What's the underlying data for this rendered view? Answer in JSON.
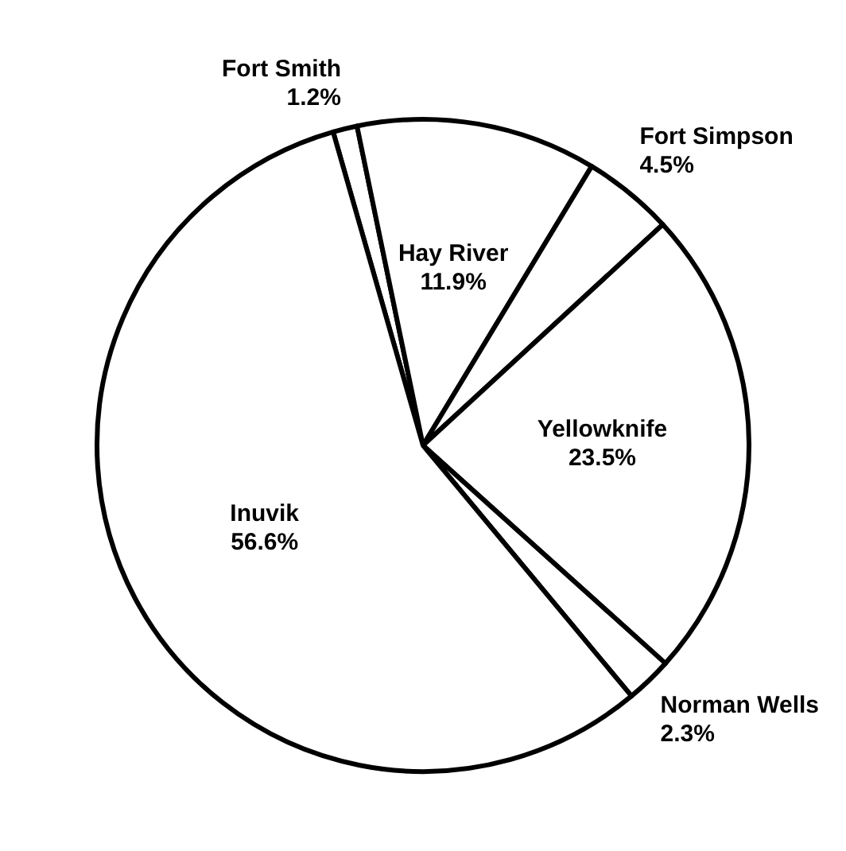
{
  "chart_data": {
    "type": "pie",
    "categories": [
      "Fort Smith",
      "Hay River",
      "Fort Simpson",
      "Yellowknife",
      "Norman Wells",
      "Inuvik"
    ],
    "values": [
      1.2,
      11.9,
      4.5,
      23.5,
      2.3,
      56.6
    ],
    "value_labels": [
      "1.2%",
      "11.9%",
      "4.5%",
      "23.5%",
      "2.3%",
      "56.6%"
    ],
    "colors": [
      "#ffffff",
      "#ffffff",
      "#ffffff",
      "#ffffff",
      "#ffffff",
      "#ffffff"
    ]
  }
}
